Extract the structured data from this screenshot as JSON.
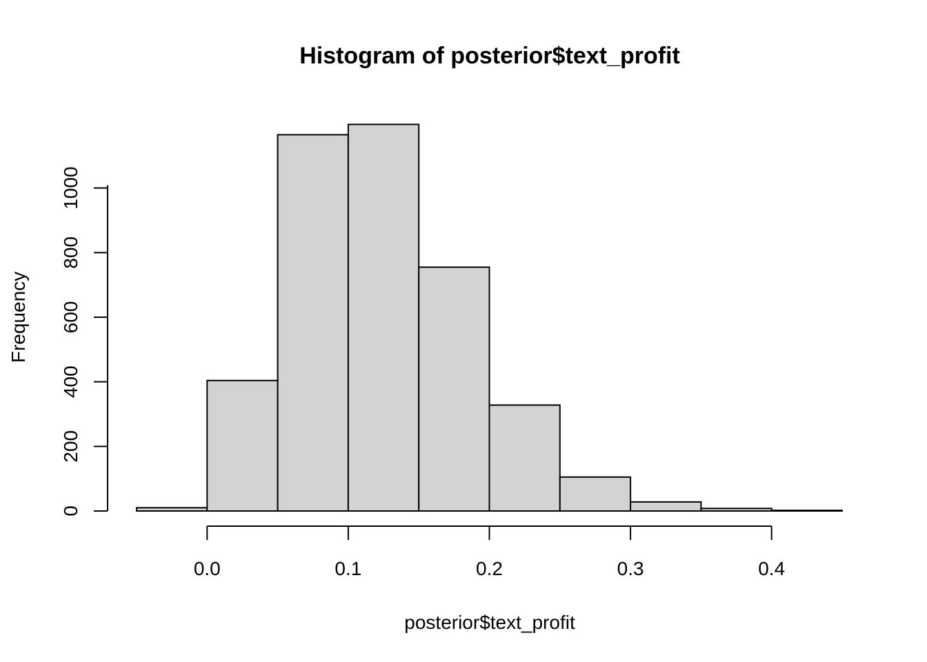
{
  "chart_data": {
    "type": "bar",
    "subtype": "histogram",
    "title": "Histogram of posterior$text_profit",
    "xlabel": "posterior$text_profit",
    "ylabel": "Frequency",
    "bins": [
      {
        "start": -0.05,
        "end": 0.0,
        "count": 10
      },
      {
        "start": 0.0,
        "end": 0.05,
        "count": 404
      },
      {
        "start": 0.05,
        "end": 0.1,
        "count": 1165
      },
      {
        "start": 0.1,
        "end": 0.15,
        "count": 1197
      },
      {
        "start": 0.15,
        "end": 0.2,
        "count": 755
      },
      {
        "start": 0.2,
        "end": 0.25,
        "count": 328
      },
      {
        "start": 0.25,
        "end": 0.3,
        "count": 105
      },
      {
        "start": 0.3,
        "end": 0.35,
        "count": 28
      },
      {
        "start": 0.35,
        "end": 0.4,
        "count": 8
      },
      {
        "start": 0.4,
        "end": 0.45,
        "count": 2
      }
    ],
    "xlim": [
      -0.05,
      0.45
    ],
    "ylim": [
      0,
      1200
    ],
    "x_ticks": [
      0.0,
      0.1,
      0.2,
      0.3,
      0.4
    ],
    "x_tick_labels": [
      "0.0",
      "0.1",
      "0.2",
      "0.3",
      "0.4"
    ],
    "y_ticks": [
      0,
      200,
      400,
      600,
      800,
      1000
    ],
    "y_tick_labels": [
      "0",
      "200",
      "400",
      "600",
      "800",
      "1000"
    ],
    "grid": false,
    "bar_fill": "#d3d3d3",
    "bar_stroke": "#000000"
  }
}
